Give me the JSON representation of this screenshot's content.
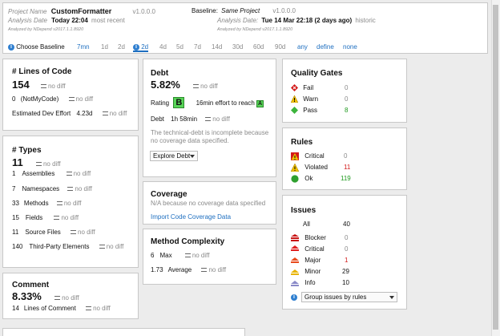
{
  "header": {
    "project_label": "Project Name",
    "project_name": "CustomFormatter",
    "project_version": "v1.0.0.0",
    "analysis_label": "Analysis Date",
    "analysis_date": "Today 22:04",
    "analysis_note": "most recent",
    "analyzed_by": "Analyzed by NDepend v2017.1.1.8920",
    "baseline_label": "Baseline:",
    "baseline_name": "Same Project",
    "baseline_version": "v1.0.0.0",
    "baseline_analysis_label": "Analysis Date:",
    "baseline_date": "Tue 14 Mar  22:18",
    "baseline_ago": "(2 days ago)",
    "baseline_note": "historic",
    "baseline_analyzed_by": "Analyzed by NDepend v2017.1.1.8920"
  },
  "baseline_bar": {
    "choose_label": "Choose Baseline",
    "options": [
      "7mn",
      "1d",
      "2d",
      "2d",
      "4d",
      "5d",
      "7d",
      "14d",
      "30d",
      "60d",
      "90d",
      "any",
      "define",
      "none"
    ]
  },
  "loc": {
    "title": "# Lines of Code",
    "value": "154",
    "diff": "no diff",
    "notmycode_value": "0",
    "notmycode_label": "(NotMyCode)",
    "notmycode_diff": "no diff",
    "effort_label": "Estimated Dev Effort",
    "effort_value": "4.23d",
    "effort_diff": "no diff"
  },
  "types": {
    "title": "# Types",
    "value": "11",
    "diff": "no diff",
    "rows": [
      {
        "value": "1",
        "label": "Assemblies",
        "diff": "no diff"
      },
      {
        "value": "7",
        "label": "Namespaces",
        "diff": "no diff"
      },
      {
        "value": "33",
        "label": "Methods",
        "diff": "no diff"
      },
      {
        "value": "15",
        "label": "Fields",
        "diff": "no diff"
      },
      {
        "value": "11",
        "label": "Source Files",
        "diff": "no diff"
      },
      {
        "value": "140",
        "label": "Third-Party Elements",
        "diff": "no diff"
      }
    ]
  },
  "comment": {
    "title": "Comment",
    "value": "8.33%",
    "diff": "no diff",
    "lines_value": "14",
    "lines_label": "Lines of Comment",
    "lines_diff": "no diff"
  },
  "debt": {
    "title": "Debt",
    "value": "5.82%",
    "diff": "no diff",
    "rating_label": "Rating",
    "rating": "B",
    "effort_text": "16min effort to reach",
    "effort_target": "A",
    "debt_label": "Debt",
    "debt_value": "1h  58min",
    "debt_diff": "no diff",
    "note": "The technical-debt is incomplete because no coverage data specified.",
    "explore_label": "Explore Debt"
  },
  "coverage": {
    "title": "Coverage",
    "note": "N/A because no coverage data specified",
    "import_link": "Import Code Coverage Data"
  },
  "complexity": {
    "title": "Method Complexity",
    "max_value": "6",
    "max_label": "Max",
    "max_diff": "no diff",
    "avg_value": "1.73",
    "avg_label": "Average",
    "avg_diff": "no diff"
  },
  "quality_gates": {
    "title": "Quality Gates",
    "rows": [
      {
        "label": "Fail",
        "count": "0",
        "icon": "fail-icon"
      },
      {
        "label": "Warn",
        "count": "0",
        "icon": "warn-icon"
      },
      {
        "label": "Pass",
        "count": "8",
        "icon": "pass-icon"
      }
    ]
  },
  "rules": {
    "title": "Rules",
    "rows": [
      {
        "label": "Critical",
        "count": "0",
        "icon": "critical-rule-icon"
      },
      {
        "label": "Violated",
        "count": "11",
        "icon": "violated-icon"
      },
      {
        "label": "Ok",
        "count": "119",
        "icon": "ok-icon"
      }
    ]
  },
  "issues": {
    "title": "Issues",
    "all_label": "All",
    "all_count": "40",
    "rows": [
      {
        "label": "Blocker",
        "count": "0",
        "icon": "blocker-icon"
      },
      {
        "label": "Critical",
        "count": "0",
        "icon": "critical-icon"
      },
      {
        "label": "Major",
        "count": "1",
        "icon": "major-icon"
      },
      {
        "label": "Minor",
        "count": "29",
        "icon": "minor-icon"
      },
      {
        "label": "Info",
        "count": "10",
        "icon": "info-issue-icon"
      }
    ],
    "group_label": "Group issues by rules"
  },
  "colors": {
    "link": "#1e6fc0",
    "rating_green": "#58d558",
    "red": "#d21a1a",
    "green": "#1e9a1e"
  }
}
